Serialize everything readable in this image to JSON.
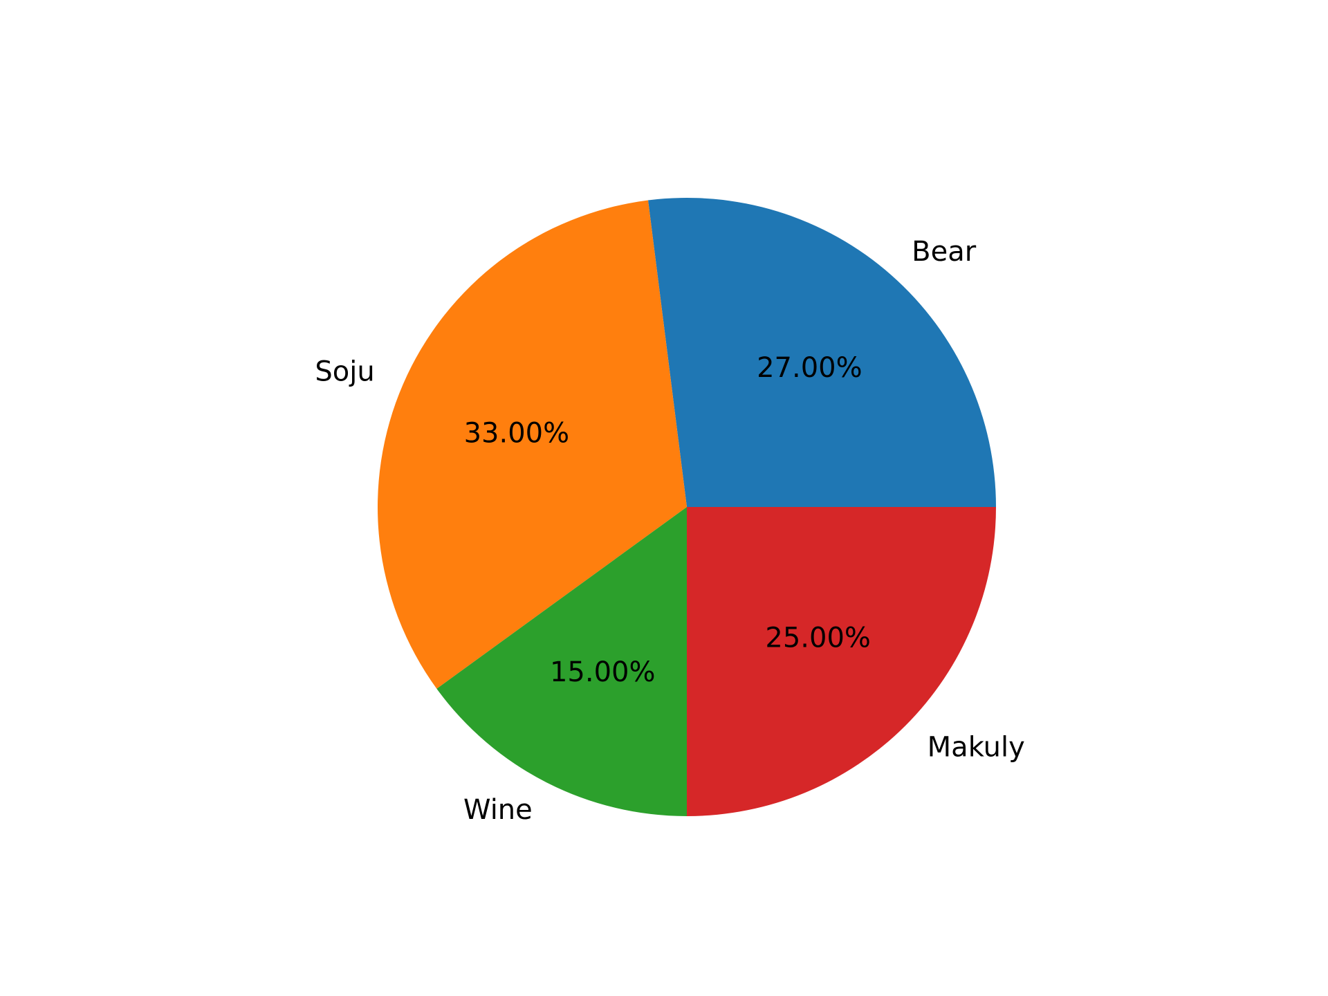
{
  "chart_data": {
    "type": "pie",
    "title": "",
    "start_angle_deg": 0,
    "direction": "counterclockwise",
    "slices": [
      {
        "label": "Bear",
        "value": 27,
        "pct_label": "27.00%",
        "color": "#1f77b4"
      },
      {
        "label": "Soju",
        "value": 33,
        "pct_label": "33.00%",
        "color": "#ff7f0e"
      },
      {
        "label": "Wine",
        "value": 15,
        "pct_label": "15.00%",
        "color": "#2ca02c"
      },
      {
        "label": "Makuly",
        "value": 25,
        "pct_label": "25.00%",
        "color": "#d62728"
      }
    ]
  }
}
